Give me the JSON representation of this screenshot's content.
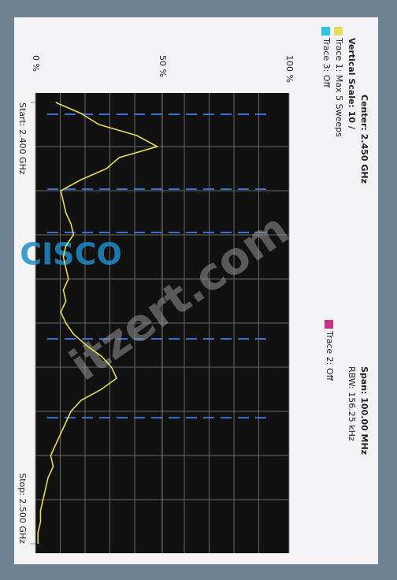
{
  "chart_data": {
    "type": "line",
    "annotations": {
      "center": "Center: 2.450 GHz",
      "span": "Span: 100.00 MHz",
      "rbw": "RBW: 156.25 kHz",
      "vertical_scale": "Vertical Scale: 10 /"
    },
    "x": [
      2.4,
      2.4025,
      2.405,
      2.4075,
      2.41,
      2.4125,
      2.415,
      2.4175,
      2.42,
      2.4225,
      2.425,
      2.4275,
      2.43,
      2.4325,
      2.435,
      2.4375,
      2.44,
      2.4425,
      2.445,
      2.4475,
      2.45,
      2.4525,
      2.455,
      2.4575,
      2.46,
      2.4625,
      2.465,
      2.4675,
      2.47,
      2.4725,
      2.475,
      2.4775,
      2.48,
      2.4825,
      2.485,
      2.4875,
      2.49,
      2.4925,
      2.495,
      2.4975,
      2.5
    ],
    "series": [
      {
        "name": "Trace 1: Max 5 Sweeps",
        "color": "#e6dc5a",
        "values": [
          8,
          18,
          25,
          40,
          48,
          33,
          28,
          18,
          10,
          11,
          12,
          14,
          15,
          12,
          11,
          12,
          13,
          11,
          12,
          10,
          12,
          15,
          20,
          26,
          30,
          32,
          26,
          18,
          14,
          12,
          10,
          8,
          6,
          7,
          5,
          4,
          3,
          2,
          2,
          1,
          1
        ]
      }
    ],
    "legend_extra": [
      {
        "label": "Trace 2: Off",
        "color": "#d0308a"
      },
      {
        "label": "Trace 3: Off",
        "color": "#2fc4e0"
      }
    ],
    "xlim": [
      2.4,
      2.5
    ],
    "xticks": [
      {
        "value": 2.4,
        "label": "Start: 2.400 GHz"
      },
      {
        "value": 2.5,
        "label": "Stop: 2.500 GHz"
      }
    ],
    "ylim": [
      0,
      100
    ],
    "yticks": [
      {
        "value": 0,
        "label": "0 %"
      },
      {
        "value": 50,
        "label": "50 %"
      },
      {
        "value": 100,
        "label": "100 %"
      }
    ],
    "grid": true,
    "watermark": "itzert.com",
    "logo": "CISCO"
  }
}
